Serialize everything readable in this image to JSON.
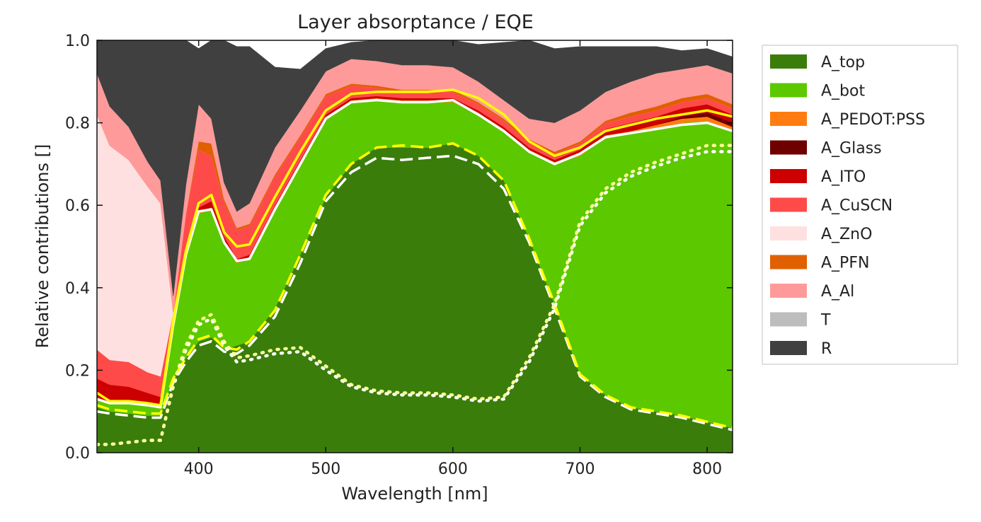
{
  "chart_data": {
    "type": "area",
    "title": "Layer absorptance / EQE",
    "xlabel": "Wavelength [nm]",
    "ylabel": "Relative contributions []",
    "xlim": [
      320,
      820
    ],
    "ylim": [
      0,
      1
    ],
    "x_ticks": [
      400,
      500,
      600,
      700,
      800
    ],
    "x_tick_labels": [
      "400",
      "500",
      "600",
      "700",
      "800"
    ],
    "y_ticks": [
      0,
      0.2,
      0.4,
      0.6,
      0.8,
      1.0
    ],
    "y_tick_labels": [
      "0.0",
      "0.2",
      "0.4",
      "0.6",
      "0.8",
      "1.0"
    ],
    "grid": false,
    "legend_position": "right, outside plot",
    "x": [
      320,
      330,
      345,
      360,
      370,
      380,
      390,
      400,
      410,
      420,
      430,
      440,
      460,
      480,
      500,
      520,
      540,
      560,
      580,
      600,
      620,
      640,
      660,
      680,
      700,
      720,
      740,
      760,
      780,
      800,
      820
    ],
    "stacked_series": [
      {
        "name": "A_top",
        "color": "#3a7d0b",
        "values": [
          0.11,
          0.1,
          0.095,
          0.09,
          0.09,
          0.18,
          0.23,
          0.27,
          0.28,
          0.25,
          0.26,
          0.27,
          0.35,
          0.48,
          0.62,
          0.7,
          0.74,
          0.74,
          0.74,
          0.75,
          0.72,
          0.66,
          0.52,
          0.36,
          0.19,
          0.14,
          0.11,
          0.1,
          0.09,
          0.075,
          0.06
        ]
      },
      {
        "name": "A_bot",
        "color": "#5cc800",
        "values": [
          0.02,
          0.02,
          0.025,
          0.025,
          0.02,
          0.13,
          0.25,
          0.31,
          0.31,
          0.26,
          0.2,
          0.2,
          0.24,
          0.22,
          0.19,
          0.15,
          0.115,
          0.11,
          0.11,
          0.1,
          0.1,
          0.12,
          0.21,
          0.34,
          0.53,
          0.625,
          0.665,
          0.685,
          0.71,
          0.73,
          0.72
        ]
      },
      {
        "name": "A_PEDOT:PSS",
        "color": "#ff7d10",
        "values": [
          0.0,
          0.0,
          0.0,
          0.0,
          0.0,
          0.0,
          0.0,
          0.005,
          0.005,
          0.005,
          0.005,
          0.005,
          0.005,
          0.005,
          0.005,
          0.005,
          0.005,
          0.005,
          0.005,
          0.005,
          0.005,
          0.005,
          0.005,
          0.005,
          0.005,
          0.005,
          0.005,
          0.01,
          0.01,
          0.01,
          0.01
        ]
      },
      {
        "name": "A_Glass",
        "color": "#6e0000",
        "values": [
          0.0,
          0.0,
          0.0,
          0.0,
          0.0,
          0.0,
          0.0,
          0.0,
          0.0,
          0.0,
          0.0,
          0.0,
          0.0,
          0.0,
          0.0,
          0.0,
          0.0,
          0.0,
          0.0,
          0.0,
          0.0,
          0.0,
          0.0,
          0.0,
          0.0,
          0.0,
          0.0,
          0.0,
          0.005,
          0.01,
          0.01
        ]
      },
      {
        "name": "A_ITO",
        "color": "#cc0000",
        "values": [
          0.05,
          0.045,
          0.04,
          0.03,
          0.025,
          0.0,
          0.0,
          0.01,
          0.015,
          0.01,
          0.005,
          0.005,
          0.005,
          0.005,
          0.005,
          0.005,
          0.005,
          0.005,
          0.005,
          0.005,
          0.005,
          0.005,
          0.005,
          0.005,
          0.01,
          0.015,
          0.02,
          0.02,
          0.02,
          0.02,
          0.02
        ]
      },
      {
        "name": "A_CuSCN",
        "color": "#ff4a4a",
        "values": [
          0.07,
          0.06,
          0.06,
          0.05,
          0.05,
          0.03,
          0.1,
          0.14,
          0.11,
          0.08,
          0.07,
          0.07,
          0.07,
          0.055,
          0.045,
          0.03,
          0.02,
          0.015,
          0.015,
          0.015,
          0.015,
          0.015,
          0.015,
          0.015,
          0.015,
          0.015,
          0.015,
          0.015,
          0.015,
          0.015,
          0.015
        ]
      },
      {
        "name": "A_ZnO",
        "color": "#ffe0e0",
        "values": [
          0.57,
          0.52,
          0.49,
          0.45,
          0.42,
          0.0,
          0.0,
          0.0,
          0.0,
          0.0,
          0.0,
          0.0,
          0.0,
          0.0,
          0.0,
          0.0,
          0.0,
          0.0,
          0.0,
          0.0,
          0.0,
          0.0,
          0.0,
          0.0,
          0.0,
          0.0,
          0.0,
          0.0,
          0.0,
          0.0,
          0.0
        ]
      },
      {
        "name": "A_PFN",
        "color": "#e06000",
        "values": [
          0.0,
          0.0,
          0.0,
          0.0,
          0.0,
          0.0,
          0.0,
          0.02,
          0.03,
          0.01,
          0.005,
          0.005,
          0.005,
          0.005,
          0.005,
          0.005,
          0.005,
          0.005,
          0.005,
          0.005,
          0.005,
          0.005,
          0.005,
          0.005,
          0.005,
          0.005,
          0.01,
          0.01,
          0.01,
          0.01,
          0.01
        ]
      },
      {
        "name": "A_Al",
        "color": "#ff9a9a",
        "values": [
          0.1,
          0.095,
          0.08,
          0.06,
          0.055,
          0.04,
          0.07,
          0.09,
          0.06,
          0.04,
          0.04,
          0.05,
          0.065,
          0.06,
          0.055,
          0.06,
          0.06,
          0.06,
          0.06,
          0.055,
          0.05,
          0.045,
          0.05,
          0.07,
          0.075,
          0.07,
          0.075,
          0.08,
          0.07,
          0.07,
          0.075
        ]
      },
      {
        "name": "T",
        "color": "#bdbdbd",
        "values": [
          0,
          0,
          0,
          0,
          0,
          0,
          0,
          0,
          0,
          0,
          0,
          0,
          0,
          0,
          0,
          0,
          0,
          0,
          0,
          0,
          0,
          0,
          0,
          0,
          0,
          0,
          0,
          0,
          0,
          0,
          0
        ]
      },
      {
        "name": "R",
        "color": "#404040",
        "values": [
          0.08,
          0.16,
          0.21,
          0.295,
          0.34,
          0.62,
          0.35,
          0.135,
          0.19,
          0.345,
          0.4,
          0.38,
          0.195,
          0.1,
          0.055,
          0.04,
          0.05,
          0.06,
          0.06,
          0.065,
          0.09,
          0.14,
          0.19,
          0.18,
          0.155,
          0.11,
          0.085,
          0.065,
          0.045,
          0.04,
          0.04
        ]
      }
    ],
    "boundary_lines": [
      {
        "style": "solid",
        "color": "#ffffff",
        "values": [
          0.13,
          0.12,
          0.12,
          0.115,
          0.11,
          0.31,
          0.48,
          0.585,
          0.59,
          0.51,
          0.465,
          0.47,
          0.59,
          0.7,
          0.81,
          0.85,
          0.855,
          0.85,
          0.85,
          0.855,
          0.82,
          0.78,
          0.73,
          0.7,
          0.725,
          0.765,
          0.775,
          0.785,
          0.795,
          0.8,
          0.78
        ]
      },
      {
        "style": "solid",
        "color": "#ffff00",
        "values": [
          0.145,
          0.125,
          0.125,
          0.12,
          0.115,
          0.32,
          0.49,
          0.605,
          0.625,
          0.535,
          0.5,
          0.505,
          0.62,
          0.73,
          0.83,
          0.87,
          0.875,
          0.875,
          0.875,
          0.88,
          0.86,
          0.82,
          0.755,
          0.72,
          0.74,
          0.78,
          0.795,
          0.81,
          0.82,
          0.83,
          0.815
        ]
      },
      {
        "style": "dashed",
        "color": "#ffffff",
        "values": [
          0.1,
          0.095,
          0.09,
          0.085,
          0.085,
          0.17,
          0.22,
          0.26,
          0.27,
          0.245,
          0.24,
          0.26,
          0.33,
          0.46,
          0.61,
          0.68,
          0.715,
          0.71,
          0.715,
          0.72,
          0.7,
          0.64,
          0.51,
          0.35,
          0.185,
          0.135,
          0.105,
          0.095,
          0.085,
          0.07,
          0.055
        ]
      },
      {
        "style": "dashed",
        "color": "#ffff00",
        "values": [
          0.115,
          0.105,
          0.1,
          0.095,
          0.095,
          0.18,
          0.23,
          0.275,
          0.285,
          0.255,
          0.25,
          0.27,
          0.345,
          0.48,
          0.625,
          0.7,
          0.74,
          0.745,
          0.74,
          0.75,
          0.72,
          0.66,
          0.52,
          0.36,
          0.19,
          0.14,
          0.11,
          0.1,
          0.09,
          0.075,
          0.06
        ]
      },
      {
        "style": "dotted",
        "color": "#ffffff",
        "values": [
          0.02,
          0.02,
          0.025,
          0.03,
          0.03,
          0.16,
          0.25,
          0.31,
          0.325,
          0.26,
          0.22,
          0.225,
          0.24,
          0.245,
          0.2,
          0.16,
          0.145,
          0.14,
          0.14,
          0.135,
          0.125,
          0.13,
          0.22,
          0.35,
          0.55,
          0.63,
          0.67,
          0.695,
          0.715,
          0.73,
          0.73
        ]
      },
      {
        "style": "dotted",
        "color": "#ffff99",
        "values": [
          0.02,
          0.02,
          0.025,
          0.03,
          0.03,
          0.165,
          0.26,
          0.32,
          0.335,
          0.27,
          0.23,
          0.235,
          0.25,
          0.255,
          0.21,
          0.165,
          0.15,
          0.145,
          0.145,
          0.14,
          0.13,
          0.135,
          0.23,
          0.36,
          0.56,
          0.64,
          0.68,
          0.705,
          0.725,
          0.745,
          0.745
        ]
      }
    ]
  }
}
